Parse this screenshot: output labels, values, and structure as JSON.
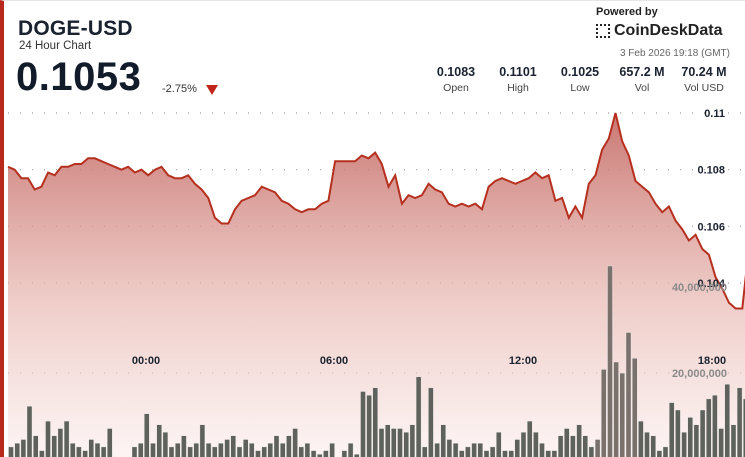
{
  "header": {
    "symbol": "DOGE-USD",
    "subtitle": "24 Hour Chart",
    "price": "0.1053",
    "change": "-2.75%",
    "change_direction": "down",
    "powered_by": "Powered by",
    "brand": "CoinDeskData",
    "timestamp": "3 Feb 2026 19:18 (GMT)"
  },
  "stats": [
    {
      "value": "0.1083",
      "label": "Open"
    },
    {
      "value": "0.1101",
      "label": "High"
    },
    {
      "value": "0.1025",
      "label": "Low"
    },
    {
      "value": "657.2 M",
      "label": "Vol"
    },
    {
      "value": "70.24 M",
      "label": "Vol USD"
    }
  ],
  "colors": {
    "accent": "#b8281c",
    "line": "#b5301f",
    "volume_bar": "#5f625c",
    "text": "#1a2230"
  },
  "chart_data": {
    "type": "area",
    "title": "DOGE-USD 24 Hour Chart",
    "xlabel": "",
    "ylabel": "",
    "x_ticks": [
      "00:00",
      "06:00",
      "12:00",
      "18:00"
    ],
    "y_ticks": [
      "0.104",
      "0.106",
      "0.108",
      "0.11"
    ],
    "volume_ticks": [
      "20,000,000",
      "40,000,000"
    ],
    "ylim": [
      0.1025,
      0.1101
    ],
    "grid": true,
    "series": [
      {
        "name": "Price",
        "values": [
          0.1081,
          0.108,
          0.1077,
          0.1077,
          0.1073,
          0.1074,
          0.1079,
          0.1078,
          0.1081,
          0.1081,
          0.1082,
          0.1082,
          0.1084,
          0.1084,
          0.1083,
          0.1082,
          0.1081,
          0.108,
          0.1081,
          0.1079,
          0.108,
          0.1078,
          0.108,
          0.1081,
          0.1078,
          0.1077,
          0.1077,
          0.1078,
          0.1075,
          0.1073,
          0.107,
          0.1063,
          0.1061,
          0.1061,
          0.1066,
          0.1069,
          0.107,
          0.1071,
          0.1074,
          0.1073,
          0.1072,
          0.1069,
          0.1068,
          0.1066,
          0.1065,
          0.1066,
          0.1066,
          0.1068,
          0.1069,
          0.1083,
          0.1083,
          0.1083,
          0.1083,
          0.1085,
          0.1084,
          0.1086,
          0.1082,
          0.1074,
          0.1078,
          0.1068,
          0.1071,
          0.107,
          0.1071,
          0.1075,
          0.1073,
          0.1072,
          0.1068,
          0.1067,
          0.1068,
          0.1067,
          0.1068,
          0.1066,
          0.1074,
          0.1076,
          0.1077,
          0.1076,
          0.1075,
          0.1076,
          0.1077,
          0.1079,
          0.1077,
          0.1078,
          0.1069,
          0.107,
          0.1063,
          0.1067,
          0.1063,
          0.1075,
          0.1078,
          0.1087,
          0.1091,
          0.11,
          0.109,
          0.1085,
          0.1076,
          0.1074,
          0.1072,
          0.1068,
          0.1065,
          0.1067,
          0.1062,
          0.1059,
          0.1055,
          0.1057,
          0.1052,
          0.105,
          0.1042,
          0.1038,
          0.1033,
          0.1031,
          0.1031,
          0.1053
        ]
      },
      {
        "name": "Volume",
        "values": [
          3,
          4,
          5,
          14,
          6,
          2,
          10,
          6,
          8,
          10,
          4,
          3,
          2,
          5,
          4,
          3,
          8,
          0,
          0,
          0,
          3,
          4,
          12,
          4,
          9,
          7,
          3,
          4,
          6,
          3,
          4,
          9,
          4,
          3,
          4,
          5,
          6,
          3,
          5,
          4,
          2,
          3,
          4,
          6,
          4,
          6,
          8,
          3,
          4,
          2,
          1,
          2,
          4,
          0,
          2,
          4,
          1,
          18,
          17,
          19,
          8,
          9,
          8,
          8,
          7,
          9,
          22,
          3,
          19,
          4,
          9,
          5,
          4,
          2,
          3,
          4,
          4,
          2,
          3,
          7,
          2,
          2,
          5,
          7,
          10,
          7,
          4,
          2,
          2,
          6,
          8,
          6,
          9,
          6,
          3,
          5,
          24,
          52,
          26,
          23,
          34,
          27,
          10,
          7,
          6,
          2,
          3,
          15,
          13,
          7,
          11,
          9,
          13,
          16,
          17,
          8,
          20,
          9,
          19,
          16
        ]
      }
    ]
  }
}
